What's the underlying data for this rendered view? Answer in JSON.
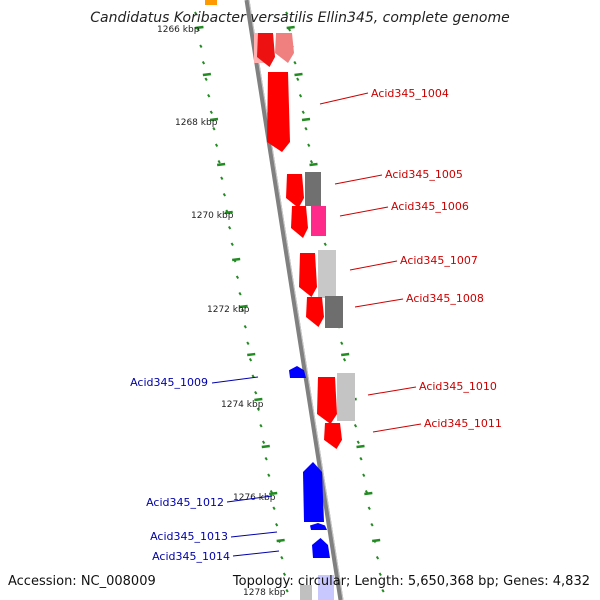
{
  "title": "Candidatus Koribacter versatilis Ellin345, complete genome",
  "footer": {
    "accession": "Accession: NC_008009",
    "topology": "Topology: circular; Length: 5,650,368 bp; Genes: 4,832"
  },
  "colors": {
    "forward": "#ff0000",
    "reverse": "#0000ff",
    "label_forward": "#cc0000",
    "label_reverse": "#0000aa",
    "tick": "#228b22",
    "backbone": "#808080"
  },
  "kbp_ticks": [
    "1266 kbp",
    "1268 kbp",
    "1270 kbp",
    "1272 kbp",
    "1274 kbp",
    "1276 kbp",
    "1278 kbp"
  ],
  "gene_labels": [
    {
      "text": "Acid345_1004",
      "strand": "forward"
    },
    {
      "text": "Acid345_1005",
      "strand": "forward"
    },
    {
      "text": "Acid345_1006",
      "strand": "forward"
    },
    {
      "text": "Acid345_1007",
      "strand": "forward"
    },
    {
      "text": "Acid345_1008",
      "strand": "forward"
    },
    {
      "text": "Acid345_1009",
      "strand": "reverse"
    },
    {
      "text": "Acid345_1010",
      "strand": "forward"
    },
    {
      "text": "Acid345_1011",
      "strand": "forward"
    },
    {
      "text": "Acid345_1012",
      "strand": "reverse"
    },
    {
      "text": "Acid345_1013",
      "strand": "reverse"
    },
    {
      "text": "Acid345_1014",
      "strand": "reverse"
    }
  ]
}
